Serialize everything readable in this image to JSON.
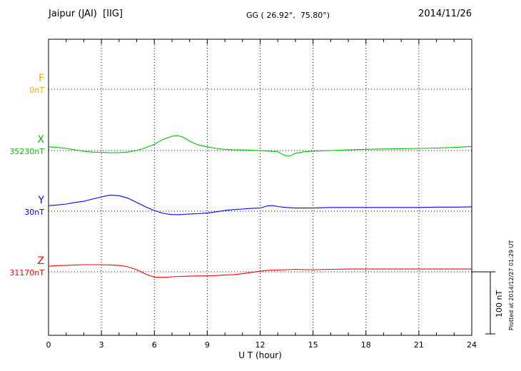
{
  "header": {
    "station": "Jaipur (JAI)  [IIG]",
    "coordinates": "GG ( 26.92°,  75.80°)",
    "date": "2014/11/26"
  },
  "footer": {
    "plotted_at": "Plotted at 2014/12/27 01:29 UT"
  },
  "colors": {
    "axis": "#000000",
    "background": "#ffffff",
    "f_trace": "#ffa500",
    "x_trace": "#00c000",
    "y_trace": "#0000ff",
    "z_trace": "#ff0000"
  },
  "chart_data": {
    "type": "line",
    "title": "Jaipur (JAI)  [IIG]",
    "subtitle": "GG ( 26.92°,  75.80°)",
    "date": "2014/11/26",
    "xlabel": "U T (hour)",
    "ylabel": "",
    "x_range": [
      0,
      24
    ],
    "x_major_ticks": [
      0,
      3,
      6,
      9,
      12,
      15,
      18,
      21,
      24
    ],
    "x_minor_tick_step_hours": 1,
    "grid": "dotted vertical lines every 3 h; dotted horizontal line at each component baseline",
    "legend_position": "left margin, one colored label per component",
    "scale_bar": {
      "label": "100 nT",
      "value_nT": 100
    },
    "value_units": "nT (offset from each component baseline value)",
    "series": [
      {
        "name": "F",
        "color": "#ffa500",
        "baseline_label": "0nT",
        "baseline_value": 0,
        "points": []
      },
      {
        "name": "X",
        "color": "#00c000",
        "baseline_label": "35230nT",
        "baseline_value": 35230,
        "points": [
          [
            0,
            6
          ],
          [
            0.5,
            5
          ],
          [
            1,
            3.5
          ],
          [
            1.5,
            1
          ],
          [
            2,
            -1
          ],
          [
            2.5,
            -2.5
          ],
          [
            3,
            -3
          ],
          [
            3.5,
            -3.5
          ],
          [
            4,
            -3.5
          ],
          [
            4.5,
            -2.5
          ],
          [
            5,
            0
          ],
          [
            5.5,
            4.5
          ],
          [
            6,
            10
          ],
          [
            6.5,
            18
          ],
          [
            7,
            23
          ],
          [
            7.3,
            24
          ],
          [
            7.6,
            22
          ],
          [
            8,
            15
          ],
          [
            8.5,
            9
          ],
          [
            9,
            6
          ],
          [
            9.5,
            3.5
          ],
          [
            10,
            2
          ],
          [
            10.5,
            1
          ],
          [
            11,
            1
          ],
          [
            11.5,
            0.5
          ],
          [
            12,
            0
          ],
          [
            12.5,
            -1
          ],
          [
            13,
            -2
          ],
          [
            13.4,
            -8
          ],
          [
            13.7,
            -9
          ],
          [
            14,
            -4.5
          ],
          [
            14.5,
            -2
          ],
          [
            15,
            -1
          ],
          [
            15.5,
            -0.5
          ],
          [
            16,
            0
          ],
          [
            17,
            1
          ],
          [
            18,
            2
          ],
          [
            19,
            2.5
          ],
          [
            20,
            3
          ],
          [
            21,
            3.5
          ],
          [
            22,
            4
          ],
          [
            23,
            5
          ],
          [
            24,
            6.5
          ]
        ]
      },
      {
        "name": "Y",
        "color": "#0000ff",
        "baseline_label": "30nT",
        "baseline_value": 30,
        "points": [
          [
            0,
            9
          ],
          [
            0.5,
            10
          ],
          [
            1,
            11.5
          ],
          [
            1.5,
            14
          ],
          [
            2,
            16
          ],
          [
            2.5,
            19.5
          ],
          [
            3,
            23
          ],
          [
            3.5,
            26
          ],
          [
            4,
            25
          ],
          [
            4.5,
            21
          ],
          [
            5,
            14
          ],
          [
            5.5,
            7
          ],
          [
            6,
            1
          ],
          [
            6.5,
            -3.5
          ],
          [
            7,
            -5.5
          ],
          [
            7.5,
            -5.5
          ],
          [
            8,
            -4.5
          ],
          [
            8.5,
            -4
          ],
          [
            9,
            -3
          ],
          [
            9.5,
            -1
          ],
          [
            10,
            1
          ],
          [
            10.5,
            2.5
          ],
          [
            11,
            3.5
          ],
          [
            11.5,
            4.5
          ],
          [
            12,
            5
          ],
          [
            12.4,
            8.5
          ],
          [
            12.7,
            9
          ],
          [
            13,
            7.5
          ],
          [
            13.5,
            6
          ],
          [
            14,
            5
          ],
          [
            15,
            5
          ],
          [
            16,
            6
          ],
          [
            17,
            6
          ],
          [
            18,
            6
          ],
          [
            19,
            6
          ],
          [
            20,
            6
          ],
          [
            21,
            6
          ],
          [
            22,
            6.5
          ],
          [
            23,
            6.5
          ],
          [
            24,
            7
          ]
        ]
      },
      {
        "name": "Z",
        "color": "#ff0000",
        "baseline_label": "31170nT",
        "baseline_value": 31170,
        "points": [
          [
            0,
            9
          ],
          [
            0.5,
            10
          ],
          [
            1,
            10.5
          ],
          [
            1.5,
            11
          ],
          [
            2,
            11.5
          ],
          [
            2.5,
            11.5
          ],
          [
            3,
            11.5
          ],
          [
            3.5,
            11
          ],
          [
            4,
            10.5
          ],
          [
            4.5,
            8
          ],
          [
            5,
            3.5
          ],
          [
            5.5,
            -3.5
          ],
          [
            6,
            -8.5
          ],
          [
            6.5,
            -9
          ],
          [
            7,
            -8
          ],
          [
            7.5,
            -7.5
          ],
          [
            8,
            -7
          ],
          [
            8.5,
            -6.5
          ],
          [
            9,
            -6.5
          ],
          [
            9.5,
            -6
          ],
          [
            10,
            -5
          ],
          [
            10.5,
            -4.5
          ],
          [
            11,
            -3
          ],
          [
            11.5,
            -1
          ],
          [
            12,
            1
          ],
          [
            12.5,
            2.5
          ],
          [
            13,
            3
          ],
          [
            13.5,
            3.5
          ],
          [
            14,
            4
          ],
          [
            14.5,
            3.5
          ],
          [
            15,
            3.5
          ],
          [
            16,
            4
          ],
          [
            17,
            4.5
          ],
          [
            18,
            4.5
          ],
          [
            19,
            4.5
          ],
          [
            20,
            4.5
          ],
          [
            21,
            4.5
          ],
          [
            22,
            4.5
          ],
          [
            23,
            4.5
          ],
          [
            24,
            4.5
          ]
        ]
      }
    ]
  }
}
